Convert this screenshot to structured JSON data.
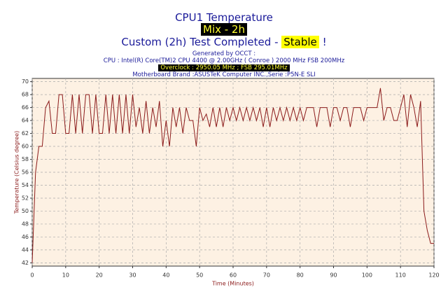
{
  "chart_data": {
    "type": "line",
    "title": "CPU1 Temperature",
    "mode": "Mix - 2h",
    "status_prefix": "Custom (2h) Test Completed -",
    "status": "Stable",
    "status_suffix": "!",
    "generated": "Generated by OCCT :",
    "cpu": "CPU : Intel(R) Core(TM)2 CPU 4400 @ 2.00GHz ( Conroe ) 2000 MHz FSB 200MHz",
    "overclock": "Overclock : 2950.05 MHz ; FSB 295.01MHz",
    "motherboard": "Motherboard Brand :ASUSTeK Computer INC.,Serie :P5N-E SLI",
    "x_label": "Time (Minutes)",
    "y_label": "Temperature (Celsius degree)",
    "color": "#8b1a1a",
    "x": [
      0,
      1,
      2,
      3,
      4,
      5,
      6,
      7,
      8,
      9,
      10,
      11,
      12,
      13,
      14,
      15,
      16,
      17,
      18,
      19,
      20,
      21,
      22,
      23,
      24,
      25,
      26,
      27,
      28,
      29,
      30,
      31,
      32,
      33,
      34,
      35,
      36,
      37,
      38,
      39,
      40,
      41,
      42,
      43,
      44,
      45,
      46,
      47,
      48,
      49,
      50,
      51,
      52,
      53,
      54,
      55,
      56,
      57,
      58,
      59,
      60,
      61,
      62,
      63,
      64,
      65,
      66,
      67,
      68,
      69,
      70,
      71,
      72,
      73,
      74,
      75,
      76,
      77,
      78,
      79,
      80,
      81,
      82,
      83,
      84,
      85,
      86,
      87,
      88,
      89,
      90,
      91,
      92,
      93,
      94,
      95,
      96,
      97,
      98,
      99,
      100,
      101,
      102,
      103,
      104,
      105,
      106,
      107,
      108,
      109,
      110,
      111,
      112,
      113,
      114,
      115,
      116,
      117,
      118,
      119,
      120
    ],
    "values": [
      42,
      56,
      60,
      60,
      66,
      67,
      62,
      62,
      68,
      68,
      62,
      62,
      68,
      62,
      68,
      62,
      68,
      68,
      62,
      68,
      62,
      62,
      68,
      62,
      68,
      62,
      68,
      62,
      68,
      62,
      68,
      63,
      66,
      62,
      67,
      62,
      66,
      63,
      67,
      60,
      64,
      60,
      66,
      63,
      66,
      62,
      66,
      64,
      64,
      60,
      66,
      64,
      65,
      63,
      66,
      63,
      66,
      63,
      66,
      64,
      66,
      64,
      66,
      64,
      66,
      64,
      66,
      64,
      66,
      63,
      66,
      63,
      66,
      64,
      66,
      64,
      66,
      64,
      66,
      64,
      66,
      64,
      66,
      66,
      66,
      63,
      66,
      66,
      66,
      63,
      66,
      66,
      64,
      66,
      66,
      63,
      66,
      66,
      66,
      64,
      66,
      66,
      66,
      66,
      69,
      64,
      66,
      66,
      64,
      64,
      66,
      68,
      63,
      68,
      66,
      63,
      67,
      50,
      47,
      45,
      45
    ],
    "xlim": [
      0,
      120
    ],
    "xticks": [
      0,
      10,
      20,
      30,
      40,
      50,
      60,
      70,
      80,
      90,
      100,
      110,
      120
    ],
    "ylim": [
      41.5,
      70.5
    ],
    "yticks": [
      42,
      44,
      46,
      48,
      50,
      52,
      54,
      56,
      58,
      60,
      62,
      64,
      66,
      68,
      70
    ],
    "grid": true
  }
}
